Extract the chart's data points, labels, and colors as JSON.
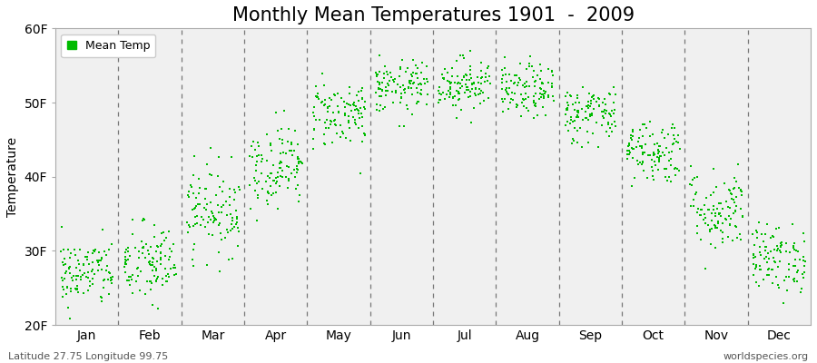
{
  "title": "Monthly Mean Temperatures 1901  -  2009",
  "ylabel": "Temperature",
  "bottom_left": "Latitude 27.75 Longitude 99.75",
  "bottom_right": "worldspecies.org",
  "legend_label": "Mean Temp",
  "dot_color": "#00bb00",
  "background_color": "#f0f0f0",
  "figure_bg": "#ffffff",
  "ylim": [
    20,
    60
  ],
  "yticks": [
    20,
    30,
    40,
    50,
    60
  ],
  "ytick_labels": [
    "20F",
    "30F",
    "40F",
    "50F",
    "60F"
  ],
  "month_names": [
    "Jan",
    "Feb",
    "Mar",
    "Apr",
    "May",
    "Jun",
    "Jul",
    "Aug",
    "Sep",
    "Oct",
    "Nov",
    "Dec"
  ],
  "month_means": [
    27.0,
    28.2,
    35.5,
    41.5,
    48.5,
    52.0,
    52.5,
    51.5,
    48.5,
    43.5,
    35.5,
    29.0
  ],
  "month_stds": [
    2.3,
    2.8,
    3.0,
    2.8,
    2.3,
    1.8,
    1.8,
    1.8,
    2.0,
    2.2,
    2.8,
    2.3
  ],
  "n_years": 109,
  "title_fontsize": 15,
  "axis_fontsize": 10,
  "tick_fontsize": 10,
  "dot_size": 3,
  "dot_alpha": 1.0,
  "dot_marker": "s"
}
